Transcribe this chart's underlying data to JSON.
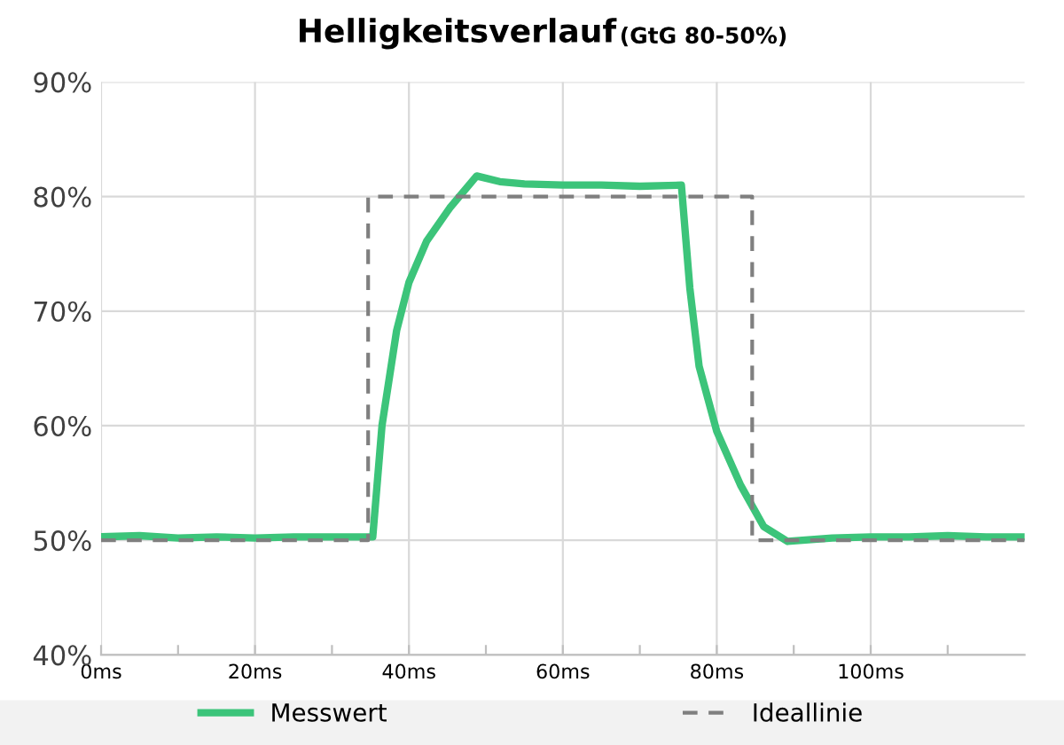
{
  "chart_data": {
    "type": "line",
    "title": "Helligkeitsverlauf",
    "subtitle": "(GtG 80-50%)",
    "series": [
      {
        "name": "Messwert",
        "color": "#3cc47a",
        "line_style": "solid",
        "x": [
          0,
          5,
          10,
          15,
          20,
          25,
          30,
          35.3,
          36.5,
          38.4,
          40,
          42.3,
          45.3,
          48.8,
          51.8,
          55,
          60,
          65,
          70,
          75.4,
          76.5,
          77.7,
          80,
          83.1,
          86.1,
          89.2,
          95,
          100,
          105,
          110,
          115,
          120
        ],
        "values": [
          50.3,
          50.4,
          50.2,
          50.3,
          50.2,
          50.3,
          50.3,
          50.3,
          60,
          68.3,
          72.5,
          76.1,
          79,
          81.8,
          81.3,
          81.1,
          81,
          81,
          80.9,
          81,
          72,
          65.2,
          59.5,
          54.8,
          51.2,
          49.9,
          50.2,
          50.3,
          50.3,
          50.4,
          50.3,
          50.3
        ]
      },
      {
        "name": "Ideallinie",
        "color": "#7f7f7f",
        "line_style": "dashed",
        "x": [
          0,
          34.7,
          34.7,
          84.6,
          84.6,
          120
        ],
        "values": [
          50,
          50,
          80,
          80,
          50,
          50
        ]
      }
    ],
    "xlim": [
      0,
      120
    ],
    "ylim": [
      40,
      90
    ],
    "xticks": [
      {
        "value": 0,
        "label": "0ms"
      },
      {
        "value": 10,
        "label": null
      },
      {
        "value": 20,
        "label": "20ms"
      },
      {
        "value": 30,
        "label": null
      },
      {
        "value": 40,
        "label": "40ms"
      },
      {
        "value": 50,
        "label": null
      },
      {
        "value": 60,
        "label": "60ms"
      },
      {
        "value": 70,
        "label": null
      },
      {
        "value": 80,
        "label": "80ms"
      },
      {
        "value": 90,
        "label": null
      },
      {
        "value": 100,
        "label": "100ms"
      },
      {
        "value": 110,
        "label": null
      }
    ],
    "yticks": [
      {
        "value": 40,
        "label": "40%"
      },
      {
        "value": 50,
        "label": "50%"
      },
      {
        "value": 60,
        "label": "60%"
      },
      {
        "value": 70,
        "label": "70%"
      },
      {
        "value": 80,
        "label": "80%"
      },
      {
        "value": 90,
        "label": "90%"
      }
    ],
    "grid": true,
    "legend": "bottom",
    "marker": "none"
  }
}
